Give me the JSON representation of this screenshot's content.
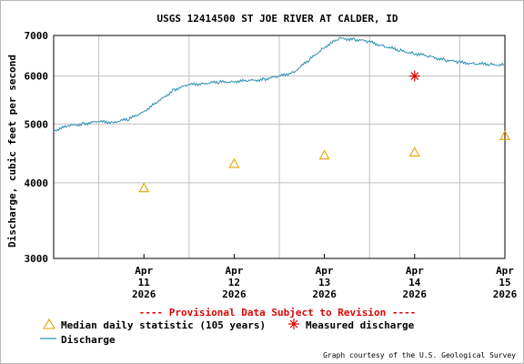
{
  "chart_data": {
    "type": "line",
    "title": "USGS 12414500 ST JOE RIVER AT CALDER, ID",
    "ylabel": "Discharge, cubic feet per second",
    "xlabel": "",
    "yscale": "log",
    "ylim": [
      3000,
      7000
    ],
    "yticks": [
      "3000",
      "4000",
      "5000",
      "6000",
      "7000"
    ],
    "xlim": [
      "2026-04-10 12:00",
      "2026-04-15 12:00"
    ],
    "xticks": [
      {
        "month": "Apr",
        "day": "11",
        "year": "2026"
      },
      {
        "month": "Apr",
        "day": "12",
        "year": "2026"
      },
      {
        "month": "Apr",
        "day": "13",
        "year": "2026"
      },
      {
        "month": "Apr",
        "day": "14",
        "year": "2026"
      },
      {
        "month": "Apr",
        "day": "15",
        "year": "2026"
      }
    ],
    "grid": true,
    "annotation": "---- Provisional Data Subject to Revision ----",
    "credit": "Graph courtesy of the U.S. Geological Survey",
    "colors": {
      "discharge": "#2a8fb0",
      "median": "#e8a000",
      "measured": "#e00000",
      "annotation": "#e00000",
      "grid": "#c0c0c0"
    },
    "series": [
      {
        "name": "Discharge",
        "x": [
          "2026-04-10 12:00",
          "2026-04-10 16:00",
          "2026-04-10 20:00",
          "2026-04-11 00:00",
          "2026-04-11 04:00",
          "2026-04-11 08:00",
          "2026-04-11 12:00",
          "2026-04-11 16:00",
          "2026-04-11 20:00",
          "2026-04-12 00:00",
          "2026-04-12 04:00",
          "2026-04-12 08:00",
          "2026-04-12 12:00",
          "2026-04-12 16:00",
          "2026-04-12 20:00",
          "2026-04-13 00:00",
          "2026-04-13 04:00",
          "2026-04-13 08:00",
          "2026-04-13 12:00",
          "2026-04-13 16:00",
          "2026-04-13 20:00",
          "2026-04-14 00:00",
          "2026-04-14 04:00",
          "2026-04-14 08:00",
          "2026-04-14 12:00",
          "2026-04-14 16:00",
          "2026-04-14 20:00",
          "2026-04-15 00:00",
          "2026-04-15 04:00",
          "2026-04-15 08:00",
          "2026-04-15 12:00"
        ],
        "values": [
          4880,
          4960,
          5010,
          5040,
          5040,
          5090,
          5250,
          5450,
          5700,
          5800,
          5840,
          5860,
          5880,
          5890,
          5930,
          5990,
          6100,
          6380,
          6700,
          6920,
          6900,
          6830,
          6720,
          6610,
          6540,
          6460,
          6380,
          6320,
          6290,
          6270,
          6260
        ]
      },
      {
        "name": "Median daily statistic (105 years)",
        "x": [
          "2026-04-11 12:00",
          "2026-04-12 12:00",
          "2026-04-13 12:00",
          "2026-04-14 12:00",
          "2026-04-15 12:00"
        ],
        "values": [
          3920,
          4300,
          4440,
          4490,
          4780
        ]
      },
      {
        "name": "Measured discharge",
        "x": [
          "2026-04-14 12:00"
        ],
        "values": [
          6000
        ]
      }
    ]
  }
}
